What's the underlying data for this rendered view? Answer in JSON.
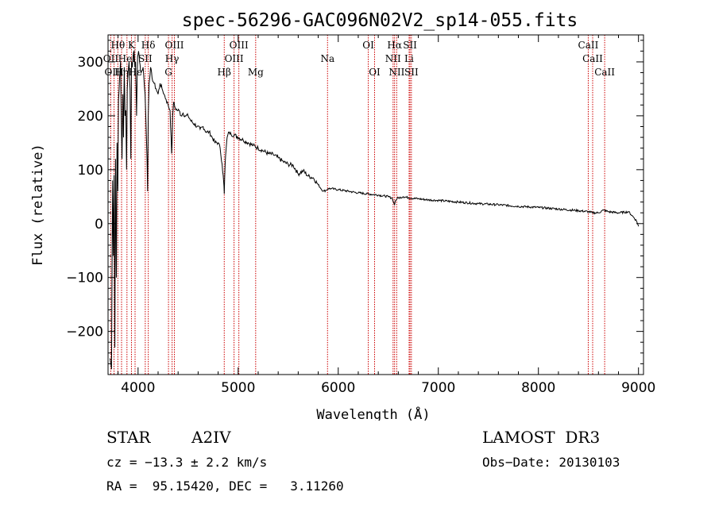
{
  "chart_data": {
    "type": "line",
    "title": "spec-56296-GAC096N02V2_sp14-055.fits",
    "xlabel": "Wavelength (Å)",
    "ylabel": "Flux (relative)",
    "xlim": [
      3700,
      9050
    ],
    "ylim": [
      -280,
      350
    ],
    "x_ticks": [
      4000,
      5000,
      6000,
      7000,
      8000,
      9000
    ],
    "y_ticks": [
      -200,
      -100,
      0,
      100,
      200,
      300
    ],
    "x_tick_labels": [
      "4000",
      "5000",
      "6000",
      "7000",
      "8000",
      "9000"
    ],
    "y_tick_labels": [
      "−200",
      "−100",
      "0",
      "100",
      "200",
      "300"
    ],
    "series": [
      {
        "name": "spectrum",
        "x": [
          3720,
          3735,
          3745,
          3752,
          3760,
          3768,
          3775,
          3783,
          3790,
          3798,
          3805,
          3815,
          3825,
          3833,
          3840,
          3848,
          3855,
          3862,
          3870,
          3878,
          3885,
          3892,
          3900,
          3910,
          3920,
          3928,
          3935,
          3942,
          3950,
          3960,
          3968,
          3975,
          3985,
          3995,
          4005,
          4015,
          4030,
          4050,
          4070,
          4090,
          4095,
          4102,
          4110,
          4125,
          4140,
          4160,
          4180,
          4200,
          4220,
          4240,
          4260,
          4280,
          4300,
          4320,
          4335,
          4340,
          4345,
          4355,
          4370,
          4390,
          4410,
          4430,
          4450,
          4470,
          4500,
          4530,
          4560,
          4590,
          4620,
          4650,
          4680,
          4710,
          4740,
          4770,
          4800,
          4820,
          4840,
          4850,
          4858,
          4861,
          4865,
          4870,
          4880,
          4890,
          4910,
          4930,
          4960,
          5000,
          5050,
          5100,
          5150,
          5200,
          5250,
          5300,
          5350,
          5400,
          5450,
          5500,
          5550,
          5600,
          5650,
          5700,
          5750,
          5800,
          5850,
          5880,
          5900,
          5930,
          5960,
          6000,
          6100,
          6200,
          6300,
          6400,
          6500,
          6540,
          6555,
          6563,
          6570,
          6590,
          6650,
          6700,
          6800,
          6900,
          7000,
          7200,
          7400,
          7600,
          7800,
          8000,
          8200,
          8400,
          8500,
          8540,
          8600,
          8650,
          8700,
          8800,
          8900,
          8950,
          8980,
          8995,
          9000
        ],
        "y": [
          -250,
          -270,
          80,
          -60,
          90,
          -230,
          120,
          -100,
          150,
          60,
          230,
          270,
          300,
          180,
          120,
          240,
          160,
          290,
          200,
          210,
          100,
          250,
          280,
          300,
          250,
          120,
          300,
          290,
          310,
          320,
          290,
          300,
          200,
          310,
          320,
          300,
          280,
          290,
          240,
          120,
          60,
          200,
          260,
          290,
          270,
          260,
          250,
          240,
          260,
          250,
          240,
          230,
          220,
          210,
          130,
          150,
          200,
          225,
          215,
          210,
          210,
          200,
          205,
          200,
          200,
          190,
          185,
          180,
          175,
          180,
          170,
          170,
          160,
          150,
          150,
          140,
          110,
          90,
          70,
          55,
          85,
          110,
          140,
          160,
          170,
          165,
          165,
          160,
          155,
          150,
          145,
          140,
          135,
          130,
          128,
          122,
          115,
          110,
          108,
          92,
          98,
          88,
          85,
          72,
          60,
          62,
          65,
          65,
          64,
          63,
          60,
          57,
          55,
          53,
          50,
          47,
          38,
          35,
          42,
          47,
          50,
          48,
          46,
          44,
          43,
          40,
          37,
          35,
          32,
          30,
          27,
          24,
          22,
          20,
          20,
          25,
          22,
          20,
          22,
          12,
          5,
          -2,
          -5
        ]
      }
    ],
    "spectral_lines": [
      {
        "label": "Hθ",
        "wavelength": 3798,
        "row": 1
      },
      {
        "label": "K",
        "wavelength": 3934,
        "row": 1
      },
      {
        "label": "Hδ",
        "wavelength": 4102,
        "row": 1
      },
      {
        "label": "OIII",
        "wavelength": 4363,
        "row": 1
      },
      {
        "label": "OIII",
        "wavelength": 5007,
        "row": 1
      },
      {
        "label": "OI",
        "wavelength": 6300,
        "row": 1
      },
      {
        "label": "Hα",
        "wavelength": 6563,
        "row": 1
      },
      {
        "label": "SII",
        "wavelength": 6717,
        "row": 1
      },
      {
        "label": "CaII",
        "wavelength": 8498,
        "row": 1
      },
      {
        "label": "OII",
        "wavelength": 3727,
        "row": 2
      },
      {
        "label": "HeI",
        "wavelength": 3889,
        "row": 2
      },
      {
        "label": "SII",
        "wavelength": 4072,
        "row": 2
      },
      {
        "label": "Hγ",
        "wavelength": 4340,
        "row": 2
      },
      {
        "label": "OIII",
        "wavelength": 4959,
        "row": 2
      },
      {
        "label": "Na",
        "wavelength": 5893,
        "row": 2
      },
      {
        "label": "NII",
        "wavelength": 6548,
        "row": 2
      },
      {
        "label": "Li",
        "wavelength": 6708,
        "row": 2
      },
      {
        "label": "CaII",
        "wavelength": 8542,
        "row": 2
      },
      {
        "label": "OIII",
        "wavelength": 3760,
        "row": 3
      },
      {
        "label": "Hη",
        "wavelength": 3835,
        "row": 3
      },
      {
        "label": "Hε",
        "wavelength": 3970,
        "row": 3
      },
      {
        "label": "G",
        "wavelength": 4304,
        "row": 3
      },
      {
        "label": "Hβ",
        "wavelength": 4861,
        "row": 3
      },
      {
        "label": "Mg",
        "wavelength": 5175,
        "row": 3
      },
      {
        "label": "OI",
        "wavelength": 6363,
        "row": 3
      },
      {
        "label": "NII",
        "wavelength": 6584,
        "row": 3
      },
      {
        "label": "SII",
        "wavelength": 6731,
        "row": 3
      },
      {
        "label": "CaII",
        "wavelength": 8662,
        "row": 3
      }
    ]
  },
  "info": {
    "object_class": "STAR",
    "subclass": "A2IV",
    "survey": "LAMOST  DR3",
    "cz": "cz = −13.3 ± 2.2 km/s",
    "obs_date": "Obs−Date: 20130103",
    "coords": "RA =  95.15420, DEC =   3.11260"
  }
}
